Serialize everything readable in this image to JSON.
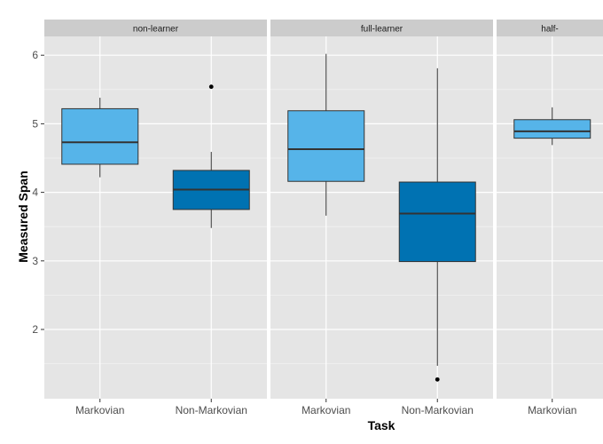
{
  "chart_data": {
    "type": "boxplot",
    "xlabel": "Task",
    "ylabel": "Measured Span",
    "y_ticks": [
      2,
      3,
      4,
      5,
      6
    ],
    "ylim": [
      1.1,
      6.3
    ],
    "categories": [
      "Markovian",
      "Non-Markovian"
    ],
    "colors": {
      "Markovian": "#56B4E9",
      "Non-Markovian": "#0072B2",
      "panel_bg": "#E5E5E5",
      "strip_bg": "#CCCCCC",
      "grid": "#FFFFFF"
    },
    "panels": [
      {
        "label": "non-learner",
        "boxes": [
          {
            "category": "Markovian",
            "min": 4.22,
            "q1": 4.41,
            "median": 4.73,
            "q3": 5.22,
            "max": 5.38,
            "outliers": []
          },
          {
            "category": "Non-Markovian",
            "min": 3.48,
            "q1": 3.75,
            "median": 4.04,
            "q3": 4.32,
            "max": 4.59,
            "outliers": [
              5.54
            ]
          }
        ]
      },
      {
        "label": "full-learner",
        "boxes": [
          {
            "category": "Markovian",
            "min": 3.66,
            "q1": 4.16,
            "median": 4.63,
            "q3": 5.19,
            "max": 6.02,
            "outliers": []
          },
          {
            "category": "Non-Markovian",
            "min": 1.47,
            "q1": 2.99,
            "median": 3.69,
            "q3": 4.15,
            "max": 5.81,
            "outliers": [
              1.27
            ]
          }
        ]
      },
      {
        "label": "half-",
        "boxes": [
          {
            "category": "Markovian",
            "min": 4.69,
            "q1": 4.79,
            "median": 4.89,
            "q3": 5.06,
            "max": 5.24,
            "outliers": []
          }
        ]
      }
    ]
  }
}
